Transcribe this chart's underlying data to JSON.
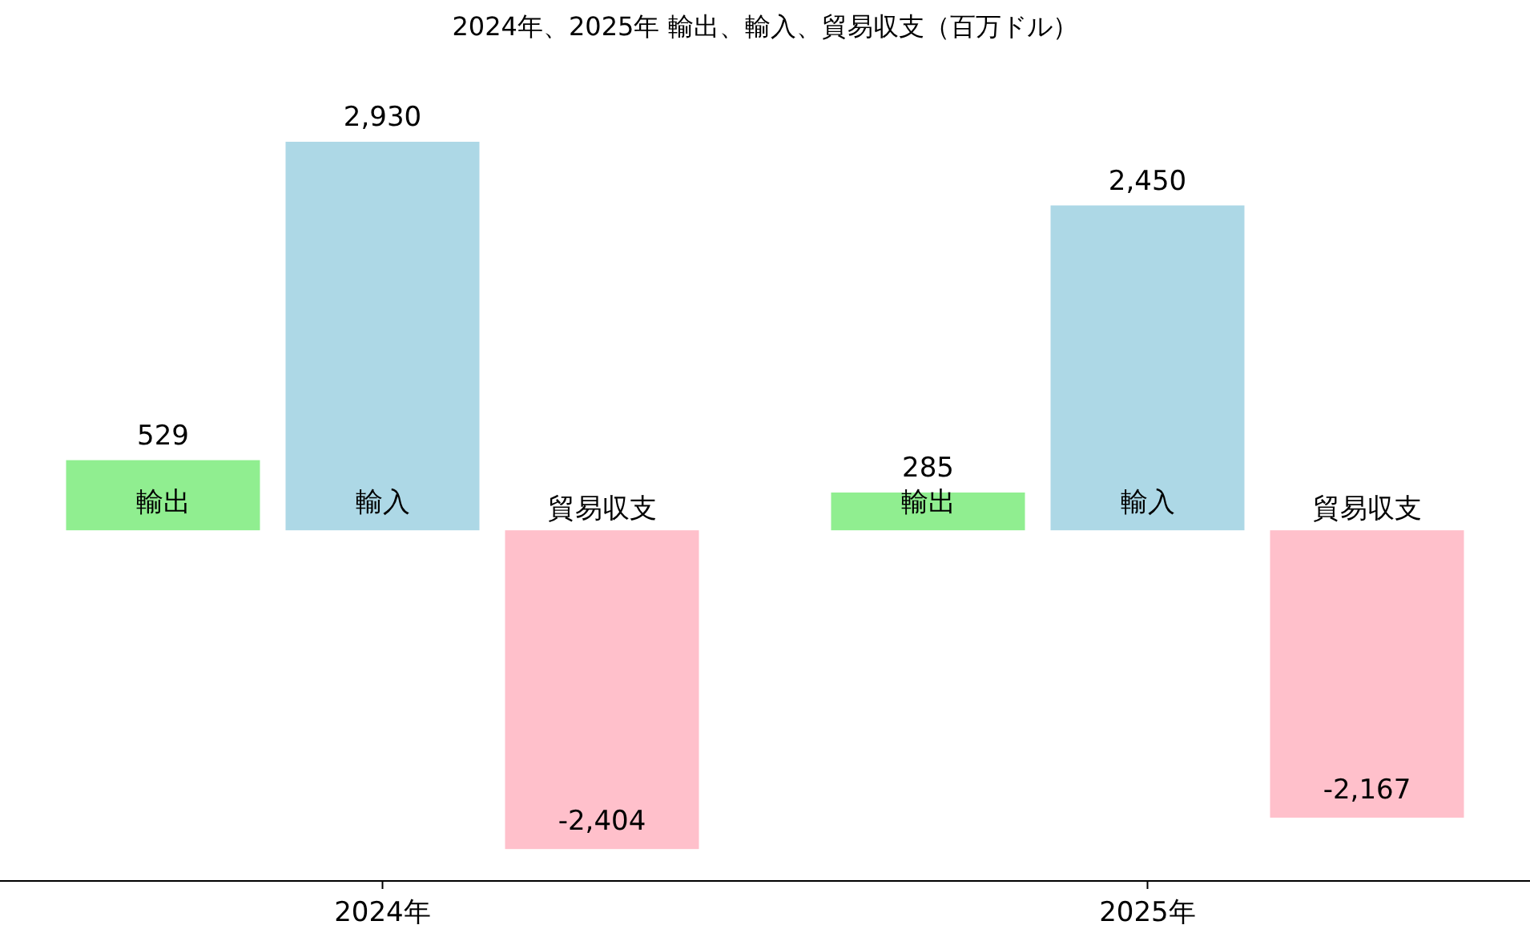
{
  "chart_data": {
    "type": "bar",
    "title": "2024年、2025年 輸出、輸入、貿易収支（百万ドル）",
    "categories": [
      "2024年",
      "2025年"
    ],
    "series": [
      {
        "name": "輸出",
        "color": "#90ee90",
        "values": [
          529,
          285
        ],
        "value_labels": [
          "529",
          "285"
        ]
      },
      {
        "name": "輸入",
        "color": "#add8e6",
        "values": [
          2930,
          2450
        ],
        "value_labels": [
          "2,930",
          "2,450"
        ]
      },
      {
        "name": "貿易収支",
        "color": "#ffc0cb",
        "values": [
          -2404,
          -2167
        ],
        "value_labels": [
          "-2,404",
          "-2,167"
        ]
      }
    ],
    "tick_labels": "x"
  }
}
